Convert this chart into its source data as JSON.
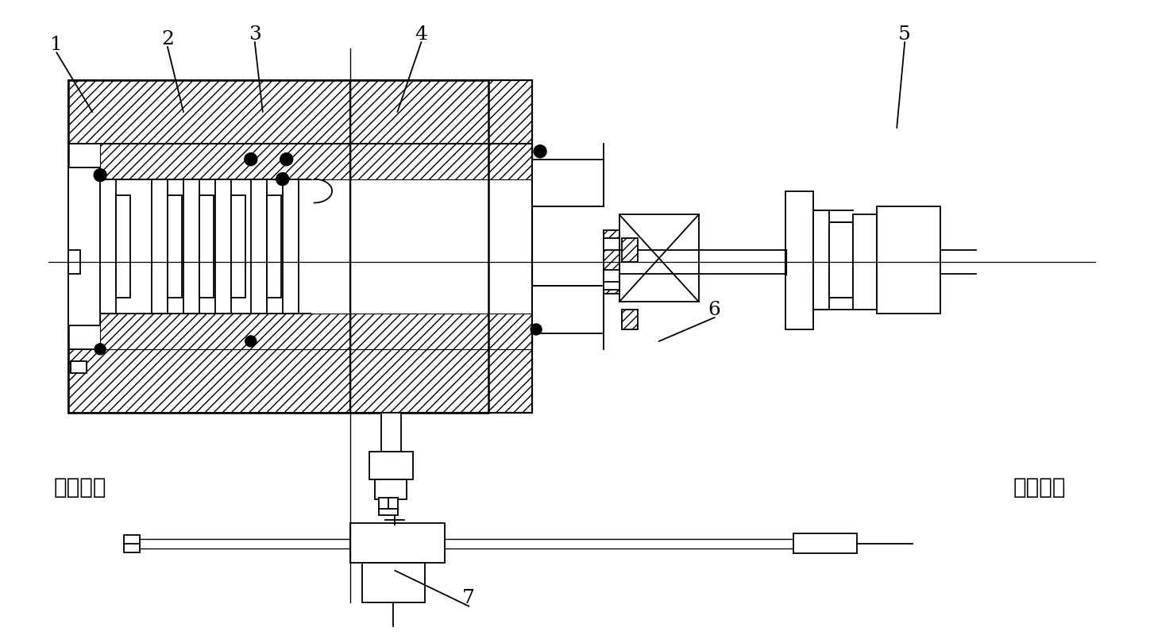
{
  "bg_color": "#ffffff",
  "lc": "#000000",
  "fig_w": 14.48,
  "fig_h": 8.0,
  "dpi": 100,
  "left_text": "滑枥前端",
  "right_text": "滑枥后端",
  "labels": [
    "1",
    "2",
    "3",
    "4",
    "5",
    "6",
    "7"
  ]
}
